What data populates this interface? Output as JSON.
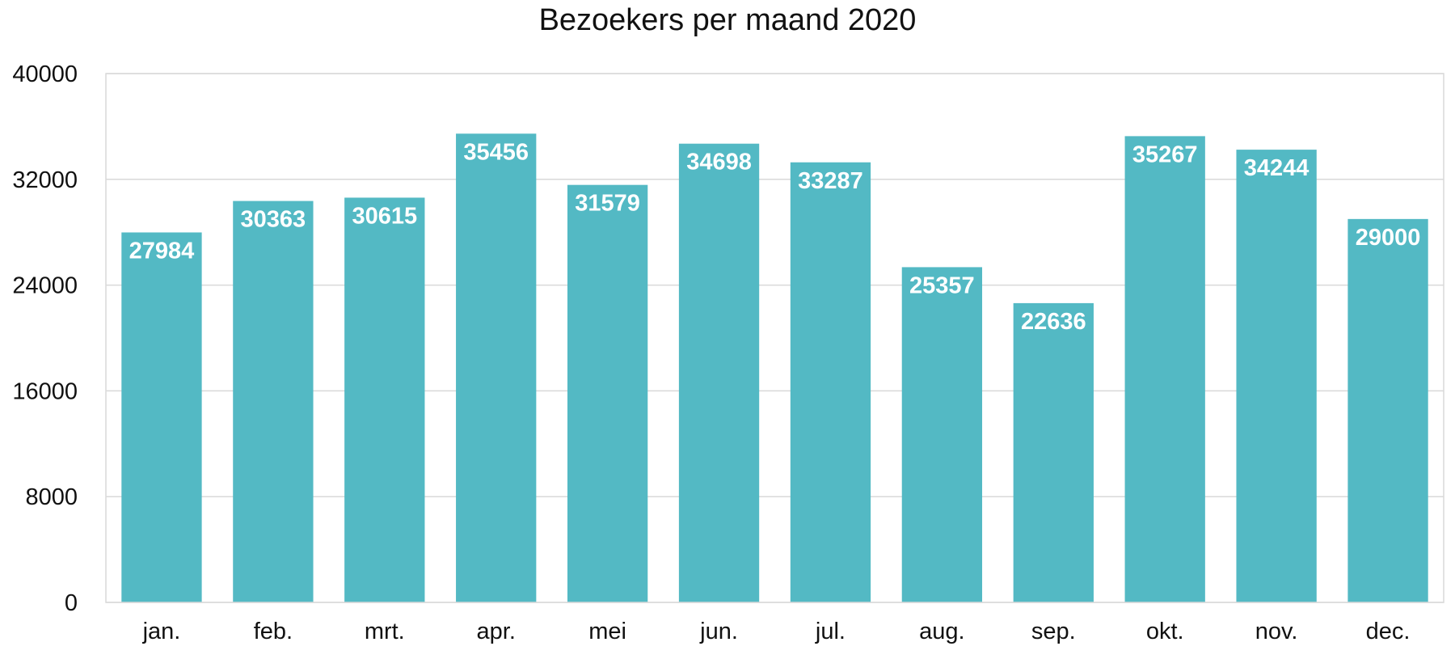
{
  "chart_data": {
    "type": "bar",
    "title": "Bezoekers per maand 2020",
    "xlabel": "",
    "ylabel": "",
    "categories": [
      "jan.",
      "feb.",
      "mrt.",
      "apr.",
      "mei",
      "jun.",
      "jul.",
      "aug.",
      "sep.",
      "okt.",
      "nov.",
      "dec."
    ],
    "values": [
      27984,
      30363,
      30615,
      35456,
      31579,
      34698,
      33287,
      25357,
      22636,
      35267,
      34244,
      29000
    ],
    "ylim": [
      0,
      40000
    ],
    "yticks": [
      0,
      8000,
      16000,
      24000,
      32000,
      40000
    ],
    "grid": true,
    "legend": "none",
    "data_labels": true,
    "colors": {
      "bar": "#53b9c4",
      "grid": "#d9d9d9",
      "frame": "#d9d9d9",
      "text": "#111111",
      "data_label": "#ffffff"
    }
  }
}
